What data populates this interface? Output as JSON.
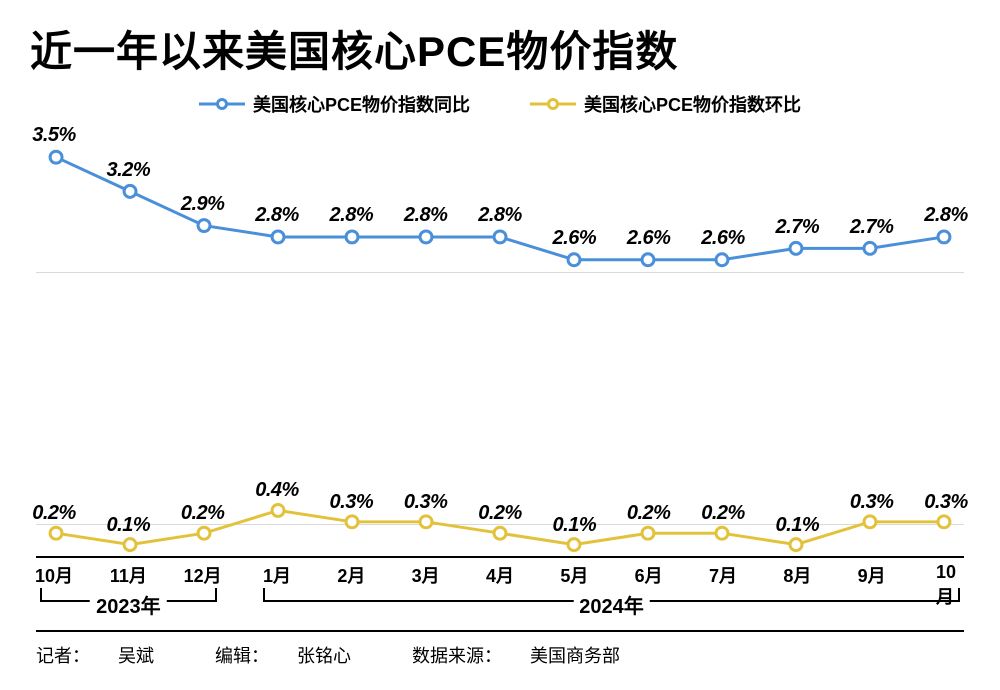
{
  "title": "近一年以来美国核心PCE物价指数",
  "legend": {
    "series1": "美国核心PCE物价指数同比",
    "series2": "美国核心PCE物价指数环比"
  },
  "chart": {
    "type": "line",
    "background_color": "#ffffff",
    "grid_color": "#d9d9d9",
    "axis_color": "#000000",
    "ylim": [
      0,
      3.8
    ],
    "gridlines_at": [
      0.3,
      2.5
    ],
    "months": [
      "10月",
      "11月",
      "12月",
      "1月",
      "2月",
      "3月",
      "4月",
      "5月",
      "6月",
      "7月",
      "8月",
      "9月",
      "10月"
    ],
    "year_groups": [
      {
        "label": "2023年",
        "start_index": 0,
        "end_index": 2
      },
      {
        "label": "2024年",
        "start_index": 3,
        "end_index": 12
      }
    ],
    "series": [
      {
        "name": "yoy",
        "color": "#4a8fd9",
        "line_width": 3,
        "marker_fill": "#ffffff",
        "marker_radius": 6,
        "marker_border": 3,
        "values": [
          3.5,
          3.2,
          2.9,
          2.8,
          2.8,
          2.8,
          2.8,
          2.6,
          2.6,
          2.6,
          2.7,
          2.7,
          2.8
        ],
        "labels": [
          "3.5%",
          "3.2%",
          "2.9%",
          "2.8%",
          "2.8%",
          "2.8%",
          "2.8%",
          "2.6%",
          "2.6%",
          "2.6%",
          "2.7%",
          "2.7%",
          "2.8%"
        ],
        "label_fontsize": 20,
        "label_offset_y": -10
      },
      {
        "name": "mom",
        "color": "#e3c23b",
        "line_width": 3,
        "marker_fill": "#ffffff",
        "marker_radius": 6,
        "marker_border": 3,
        "values": [
          0.2,
          0.1,
          0.2,
          0.4,
          0.3,
          0.3,
          0.2,
          0.1,
          0.2,
          0.2,
          0.1,
          0.3,
          0.3
        ],
        "labels": [
          "0.2%",
          "0.1%",
          "0.2%",
          "0.4%",
          "0.3%",
          "0.3%",
          "0.2%",
          "0.1%",
          "0.2%",
          "0.2%",
          "0.1%",
          "0.3%",
          "0.3%"
        ],
        "label_fontsize": 20,
        "label_offset_y": -10
      }
    ]
  },
  "footer": {
    "reporter_label": "记者：",
    "reporter": "吴斌",
    "editor_label": "编辑：",
    "editor": "张铭心",
    "source_label": "数据来源：",
    "source": "美国商务部"
  }
}
